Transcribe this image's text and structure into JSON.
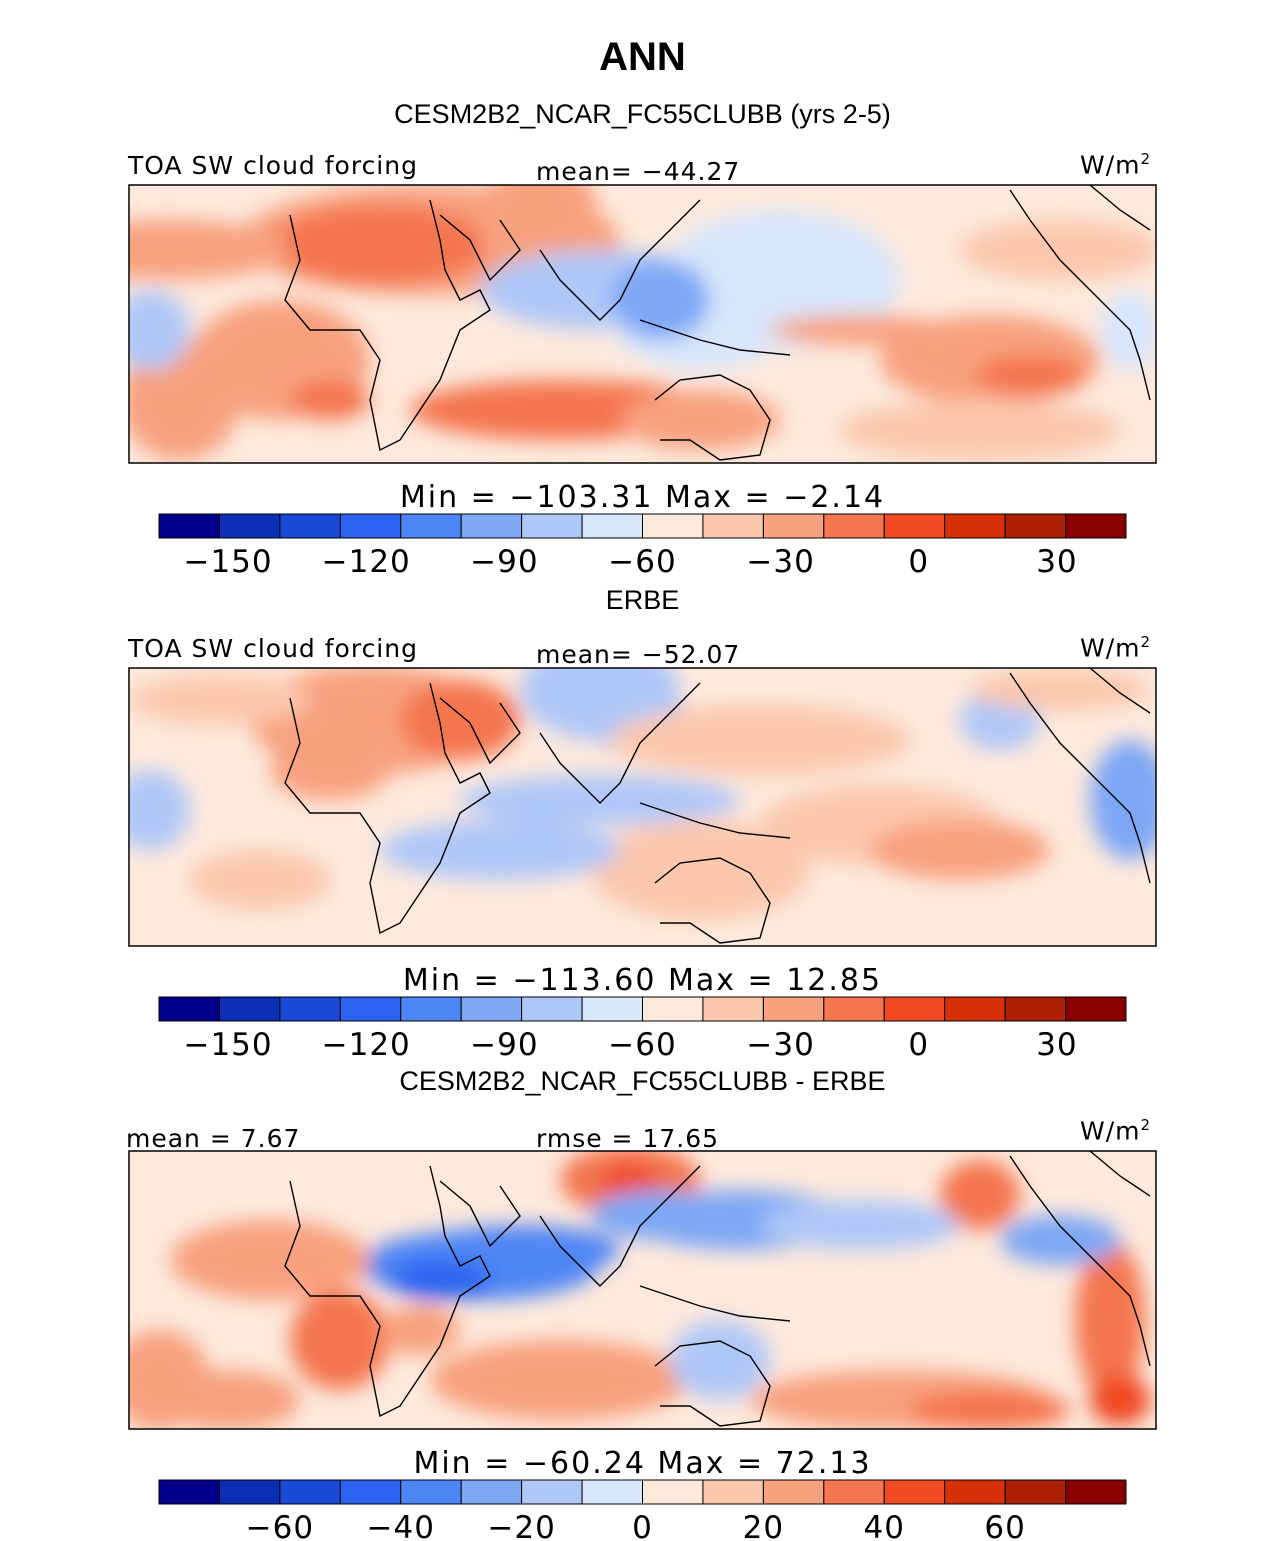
{
  "title": "ANN",
  "colors": [
    "#00008b",
    "#0a2fb4",
    "#1a49d6",
    "#2b63f0",
    "#4f86f5",
    "#7ea7f6",
    "#b0c8f8",
    "#d8e6fb",
    "#fde9dc",
    "#fbc7ad",
    "#f8a17f",
    "#f4764f",
    "#f04a22",
    "#d63008",
    "#ad1f04",
    "#880000"
  ],
  "panels": [
    {
      "id": "model",
      "heading": "CESM2B2_NCAR_FC55CLUBB (yrs 2-5)",
      "left_label": "TOA SW cloud forcing",
      "center_label": "mean=  −44.27",
      "units": "W/m",
      "units_sup": "2",
      "minmax": "Min  =  −103.31  Max  =   −2.14",
      "ticks": [
        "−150",
        "−120",
        "−90",
        "−60",
        "−30",
        "0",
        "30"
      ]
    },
    {
      "id": "obs",
      "heading": "ERBE",
      "left_label": "TOA SW cloud forcing",
      "center_label": "mean=  −52.07",
      "units": "W/m",
      "units_sup": "2",
      "minmax": "Min  =  −113.60  Max  =   12.85",
      "ticks": [
        "−150",
        "−120",
        "−90",
        "−60",
        "−30",
        "0",
        "30"
      ]
    },
    {
      "id": "diff",
      "heading": "CESM2B2_NCAR_FC55CLUBB - ERBE",
      "left_label": "mean =   7.67",
      "center_label": "rmse  =   17.65",
      "units": "W/m",
      "units_sup": "2",
      "minmax": "Min  =  −60.24  Max  =   72.13",
      "ticks": [
        "−60",
        "−40",
        "−20",
        "0",
        "20",
        "40",
        "60"
      ]
    }
  ],
  "chart_data": [
    {
      "type": "heatmap",
      "title": "CESM2B2_NCAR_FC55CLUBB (yrs 2-5)",
      "variable": "TOA SW cloud forcing",
      "units": "W/m2",
      "mean": -44.27,
      "min": -103.31,
      "max": -2.14,
      "colorbar_ticks": [
        -150,
        -120,
        -90,
        -60,
        -30,
        0,
        30
      ],
      "colorbar_range": [
        -165,
        45
      ],
      "colorbar_levels": 16
    },
    {
      "type": "heatmap",
      "title": "ERBE",
      "variable": "TOA SW cloud forcing",
      "units": "W/m2",
      "mean": -52.07,
      "min": -113.6,
      "max": 12.85,
      "colorbar_ticks": [
        -150,
        -120,
        -90,
        -60,
        -30,
        0,
        30
      ],
      "colorbar_range": [
        -165,
        45
      ],
      "colorbar_levels": 16
    },
    {
      "type": "heatmap",
      "title": "CESM2B2_NCAR_FC55CLUBB - ERBE",
      "variable": "TOA SW cloud forcing difference",
      "units": "W/m2",
      "mean": 7.67,
      "rmse": 17.65,
      "min": -60.24,
      "max": 72.13,
      "colorbar_ticks": [
        -60,
        -40,
        -20,
        0,
        20,
        40,
        60
      ],
      "colorbar_range": [
        -80,
        80
      ],
      "colorbar_levels": 16
    }
  ]
}
